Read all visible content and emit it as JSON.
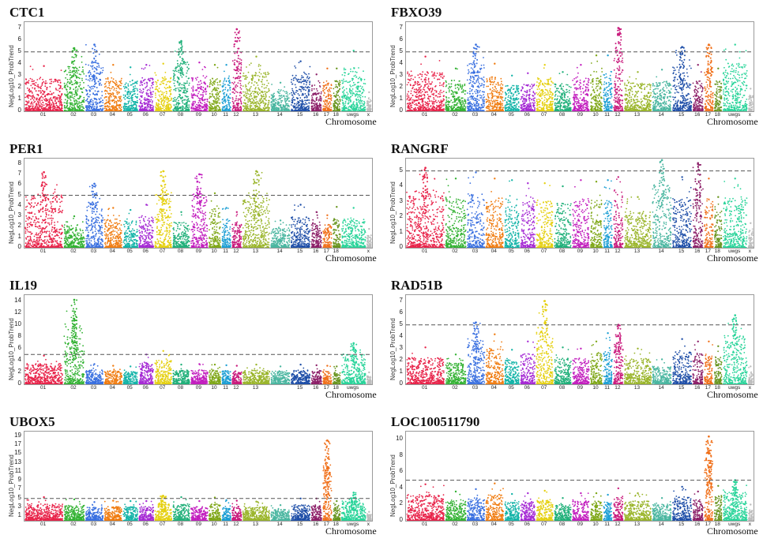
{
  "common": {
    "ylabel": "NegLog10_ProbTrend",
    "xlabel": "Chromosome",
    "threshold": 5,
    "chromosomes": [
      "01",
      "02",
      "03",
      "04",
      "05",
      "06",
      "07",
      "08",
      "09",
      "10",
      "11",
      "12",
      "13",
      "14",
      "15",
      "16",
      "17",
      "18",
      "uwgs",
      "x"
    ],
    "chromosome_sizes": [
      2.7,
      1.5,
      1.3,
      1.3,
      1.1,
      1.1,
      1.25,
      1.25,
      1.25,
      0.9,
      0.7,
      0.75,
      1.95,
      1.4,
      1.4,
      0.8,
      0.7,
      0.6,
      1.75,
      0.4
    ],
    "colors": [
      "#e8244a",
      "#33b233",
      "#3a70e0",
      "#f07c10",
      "#14b4a8",
      "#a52ad4",
      "#e5d010",
      "#21b07a",
      "#c21fbe",
      "#7fa718",
      "#1d9fd4",
      "#c91b7d",
      "#9ab52b",
      "#4ab6a0",
      "#1f4fa8",
      "#8c1f68",
      "#f0701a",
      "#68951f",
      "#2ad49a",
      "#bdbdbd"
    ]
  },
  "chart_data": [
    {
      "type": "scatter",
      "title": "CTC1",
      "ylabel": "NegLog10_ProbTrend",
      "xlabel": "Chromosome",
      "ylim": [
        0,
        7.5
      ],
      "yticks": [
        0,
        1,
        2,
        3,
        4,
        5,
        6,
        7
      ],
      "threshold": 5,
      "xticks": [
        "01",
        "02",
        "03",
        "04",
        "05",
        "06",
        "07",
        "08",
        "09",
        "10",
        "11",
        "12",
        "13",
        "14",
        "15",
        "16",
        "17",
        "18",
        "uwgs",
        "x"
      ],
      "chrom_max": [
        3.8,
        5.3,
        5.6,
        3.9,
        3.7,
        3.9,
        4.0,
        5.9,
        4.1,
        3.9,
        3.9,
        6.9,
        4.6,
        2.4,
        4.2,
        3.1,
        3.6,
        3.6,
        5.1,
        1.6
      ],
      "peaks": [
        {
          "chrom": "12",
          "y": 6.9
        },
        {
          "chrom": "08",
          "y": 5.9
        },
        {
          "chrom": "03",
          "y": 5.6
        },
        {
          "chrom": "02",
          "y": 5.3
        }
      ]
    },
    {
      "type": "scatter",
      "title": "FBXO39",
      "ylabel": "NegLog10_ProbTrend",
      "xlabel": "Chromosome",
      "ylim": [
        0,
        7.5
      ],
      "yticks": [
        0,
        1,
        2,
        3,
        4,
        5,
        6,
        7
      ],
      "threshold": 5,
      "xticks": [
        "01",
        "02",
        "03",
        "04",
        "05",
        "06",
        "07",
        "08",
        "09",
        "10",
        "11",
        "12",
        "13",
        "14",
        "15",
        "16",
        "17",
        "18",
        "uwgs",
        "x"
      ],
      "chrom_max": [
        4.6,
        3.6,
        5.6,
        4.0,
        3.0,
        3.2,
        3.9,
        3.3,
        3.9,
        4.7,
        4.7,
        7.0,
        3.3,
        3.5,
        5.4,
        3.9,
        5.6,
        3.6,
        5.6,
        1.9
      ],
      "peaks": [
        {
          "chrom": "12",
          "y": 7.0
        },
        {
          "chrom": "03",
          "y": 5.6
        },
        {
          "chrom": "17",
          "y": 5.6
        },
        {
          "chrom": "15",
          "y": 5.4
        }
      ]
    },
    {
      "type": "scatter",
      "title": "PER1",
      "ylabel": "NegLog10_ProbTrend",
      "xlabel": "Chromosome",
      "ylim": [
        0,
        8.5
      ],
      "yticks": [
        0,
        1,
        2,
        3,
        4,
        5,
        6,
        7,
        8
      ],
      "threshold": 5,
      "xticks": [
        "01",
        "02",
        "03",
        "04",
        "05",
        "06",
        "07",
        "08",
        "09",
        "10",
        "11",
        "12",
        "13",
        "14",
        "15",
        "16",
        "17",
        "18",
        "x"
      ],
      "chrom_max": [
        7.2,
        3.0,
        6.1,
        3.8,
        3.6,
        4.1,
        7.3,
        3.4,
        7.0,
        5.2,
        3.8,
        3.4,
        7.3,
        2.6,
        4.1,
        3.4,
        3.1,
        3.9,
        3.8,
        1.8
      ],
      "peaks": [
        {
          "chrom": "01",
          "y": 7.2
        },
        {
          "chrom": "07",
          "y": 7.3
        },
        {
          "chrom": "09",
          "y": 7.0
        },
        {
          "chrom": "13",
          "y": 7.3
        },
        {
          "chrom": "03",
          "y": 6.1
        }
      ]
    },
    {
      "type": "scatter",
      "title": "RANGRF",
      "ylabel": "NegLog10_ProbTrend",
      "xlabel": "Chromosome",
      "ylim": [
        0,
        5.8
      ],
      "yticks": [
        0,
        1,
        2,
        3,
        4,
        5
      ],
      "threshold": 5,
      "xticks": [
        "01",
        "02",
        "03",
        "04",
        "05",
        "06",
        "07",
        "08",
        "09",
        "10",
        "11",
        "12",
        "13",
        "14",
        "15",
        "16",
        "17",
        "18",
        "uwgs",
        "x"
      ],
      "chrom_max": [
        5.2,
        4.5,
        4.9,
        4.5,
        4.4,
        4.2,
        4.2,
        4.0,
        4.4,
        4.3,
        4.4,
        4.6,
        3.3,
        5.7,
        4.6,
        5.5,
        4.5,
        3.3,
        4.5,
        1.6
      ],
      "peaks": [
        {
          "chrom": "14",
          "y": 5.7
        },
        {
          "chrom": "16",
          "y": 5.5
        },
        {
          "chrom": "01",
          "y": 5.2
        }
      ]
    },
    {
      "type": "scatter",
      "title": "IL19",
      "ylabel": "NegLog10_ProbTrend",
      "xlabel": "Chromosome",
      "ylim": [
        0,
        15
      ],
      "yticks": [
        0,
        2,
        4,
        6,
        8,
        10,
        12,
        14
      ],
      "threshold": 5,
      "xticks": [
        "01",
        "02",
        "03",
        "04",
        "05",
        "06",
        "07",
        "08",
        "09",
        "10",
        "11",
        "12",
        "13",
        "15",
        "16",
        "17",
        "18",
        "uwgs"
      ],
      "chrom_max": [
        4.8,
        14.2,
        3.4,
        3.1,
        3.0,
        5.0,
        5.6,
        3.3,
        3.4,
        3.3,
        3.2,
        3.1,
        3.3,
        3.0,
        3.3,
        3.2,
        3.1,
        3.0,
        6.9,
        2.0
      ],
      "peaks": [
        {
          "chrom": "02",
          "y": 14.2
        },
        {
          "chrom": "02",
          "y": 11.0
        },
        {
          "chrom": "uwgs",
          "y": 6.9
        }
      ]
    },
    {
      "type": "scatter",
      "title": "RAD51B",
      "ylabel": "NegLog10_ProbTrend",
      "xlabel": "Chromosome",
      "ylim": [
        0,
        7.5
      ],
      "yticks": [
        0,
        1,
        2,
        3,
        4,
        5,
        6,
        7
      ],
      "threshold": 5,
      "xticks": [
        "01",
        "02",
        "03",
        "04",
        "05",
        "06",
        "07",
        "08",
        "09",
        "10",
        "11",
        "12",
        "13",
        "14",
        "15",
        "16",
        "17",
        "18",
        "uwgs",
        "x"
      ],
      "chrom_max": [
        3.1,
        2.5,
        5.2,
        4.2,
        2.9,
        3.6,
        7.0,
        3.1,
        3.0,
        3.6,
        4.3,
        5.0,
        3.0,
        2.1,
        3.8,
        3.6,
        3.6,
        3.2,
        5.8,
        1.5
      ],
      "peaks": [
        {
          "chrom": "07",
          "y": 7.0
        },
        {
          "chrom": "uwgs",
          "y": 5.8
        },
        {
          "chrom": "03",
          "y": 5.2
        },
        {
          "chrom": "12",
          "y": 5.0
        }
      ]
    },
    {
      "type": "scatter",
      "title": "UBOX5",
      "ylabel": "NegLog10_ProbTrend",
      "xlabel": "Chromosome",
      "ylim": [
        0,
        20
      ],
      "yticks": [
        1,
        3,
        5,
        7,
        9,
        11,
        13,
        15,
        17,
        19
      ],
      "threshold": 5,
      "xticks": [
        "01",
        "02",
        "03",
        "04",
        "05",
        "06",
        "07",
        "08",
        "09",
        "10",
        "11",
        "12",
        "13",
        "14",
        "15",
        "16",
        "17",
        "18",
        "uwgs",
        "x"
      ],
      "chrom_max": [
        5.3,
        4.8,
        4.2,
        4.5,
        4.4,
        4.4,
        5.6,
        5.3,
        4.4,
        5.2,
        4.6,
        4.5,
        4.3,
        3.5,
        5.0,
        5.0,
        18.0,
        4.4,
        6.3,
        2.0
      ],
      "peaks": [
        {
          "chrom": "17",
          "y": 18.0
        },
        {
          "chrom": "17",
          "y": 12.0
        },
        {
          "chrom": "uwgs",
          "y": 6.3
        },
        {
          "chrom": "07",
          "y": 5.6
        }
      ]
    },
    {
      "type": "scatter",
      "title": "LOC100511790",
      "ylabel": "NegLog10_ProbTrend",
      "xlabel": "Chromosome",
      "ylim": [
        0,
        11
      ],
      "yticks": [
        0,
        2,
        4,
        6,
        8,
        10
      ],
      "threshold": 5,
      "xticks": [
        "01",
        "02",
        "03",
        "04",
        "05",
        "06",
        "07",
        "08",
        "09",
        "10",
        "11",
        "12",
        "13",
        "14",
        "15",
        "16",
        "17",
        "18",
        "uwgs",
        "x"
      ],
      "chrom_max": [
        4.5,
        3.6,
        3.9,
        4.6,
        3.3,
        3.4,
        3.7,
        2.8,
        3.4,
        3.4,
        3.2,
        4.0,
        3.4,
        2.8,
        4.2,
        3.6,
        10.4,
        4.3,
        5.0,
        2.0
      ],
      "peaks": [
        {
          "chrom": "17",
          "y": 10.4
        },
        {
          "chrom": "17",
          "y": 8.5
        },
        {
          "chrom": "uwgs",
          "y": 5.0
        }
      ]
    }
  ]
}
